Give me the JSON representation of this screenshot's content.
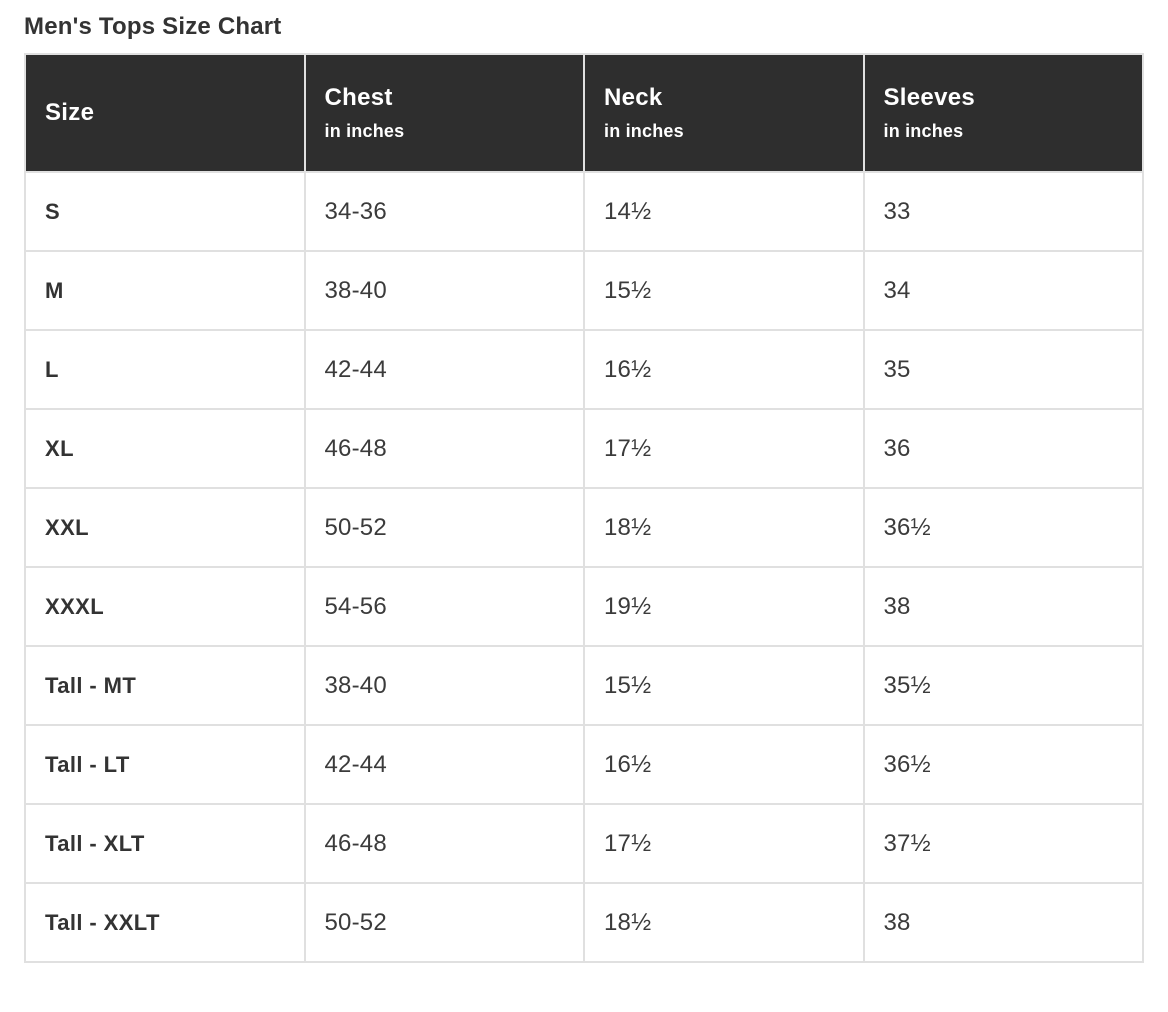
{
  "page_title": "Men's Tops Size Chart",
  "colors": {
    "header_bg": "#2e2e2e",
    "header_text": "#ffffff",
    "border": "#e0e0e0",
    "body_text": "#3b3b3b",
    "title_text": "#333333",
    "page_bg": "#ffffff"
  },
  "chart_data": {
    "type": "table",
    "title": "Men's Tops Size Chart",
    "columns": [
      {
        "label": "Size",
        "sublabel": ""
      },
      {
        "label": "Chest",
        "sublabel": "in inches"
      },
      {
        "label": "Neck",
        "sublabel": "in inches"
      },
      {
        "label": "Sleeves",
        "sublabel": "in inches"
      }
    ],
    "rows": [
      {
        "size": "S",
        "chest": "34-36",
        "neck": "14½",
        "sleeves": "33"
      },
      {
        "size": "M",
        "chest": "38-40",
        "neck": "15½",
        "sleeves": "34"
      },
      {
        "size": "L",
        "chest": "42-44",
        "neck": "16½",
        "sleeves": "35"
      },
      {
        "size": "XL",
        "chest": "46-48",
        "neck": "17½",
        "sleeves": "36"
      },
      {
        "size": "XXL",
        "chest": "50-52",
        "neck": "18½",
        "sleeves": "36½"
      },
      {
        "size": "XXXL",
        "chest": "54-56",
        "neck": "19½",
        "sleeves": "38"
      },
      {
        "size": "Tall - MT",
        "chest": "38-40",
        "neck": "15½",
        "sleeves": "35½"
      },
      {
        "size": "Tall - LT",
        "chest": "42-44",
        "neck": "16½",
        "sleeves": "36½"
      },
      {
        "size": "Tall - XLT",
        "chest": "46-48",
        "neck": "17½",
        "sleeves": "37½"
      },
      {
        "size": "Tall - XXLT",
        "chest": "50-52",
        "neck": "18½",
        "sleeves": "38"
      }
    ]
  }
}
